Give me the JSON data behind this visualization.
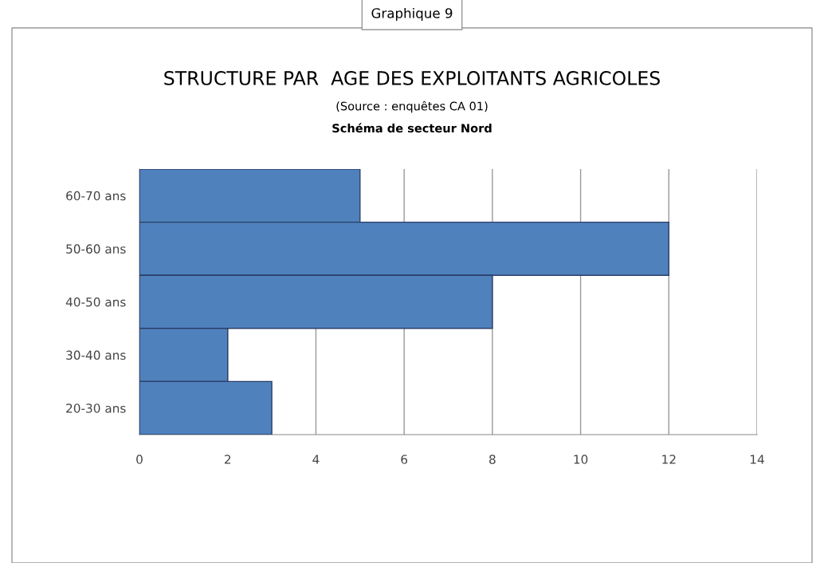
{
  "chart_data": {
    "type": "bar",
    "orientation": "horizontal",
    "title": "STRUCTURE PAR  AGE DES EXPLOITANTS AGRICOLES",
    "subtitle": "Schéma de secteur Nord",
    "annotations": [
      "Graphique 9",
      "(Source : enquêtes CA 01)"
    ],
    "categories": [
      "60-70 ans",
      "50-60 ans",
      "40-50 ans",
      "30-40 ans",
      "20-30 ans"
    ],
    "values": [
      5,
      12,
      8,
      2,
      3
    ],
    "color": "#4f81bd",
    "xlim": [
      0,
      14
    ],
    "xticks": [
      0,
      2,
      4,
      6,
      8,
      10,
      12,
      14
    ],
    "grid": "x",
    "legend": false
  }
}
